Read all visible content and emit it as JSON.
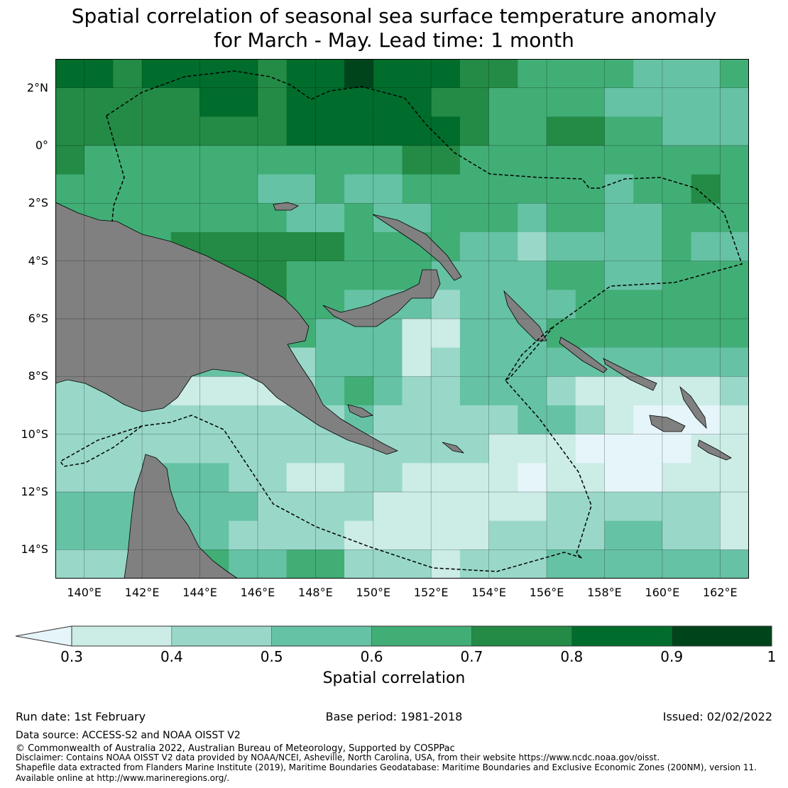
{
  "title_line1": "Spatial correlation of seasonal sea surface temperature anomaly",
  "title_line2": "for March - May. Lead time: 1 month",
  "lat_labels": [
    "2°N",
    "0°",
    "2°S",
    "4°S",
    "6°S",
    "8°S",
    "10°S",
    "12°S",
    "14°S"
  ],
  "lon_labels": [
    "140°E",
    "142°E",
    "144°E",
    "146°E",
    "148°E",
    "150°E",
    "152°E",
    "154°E",
    "156°E",
    "158°E",
    "160°E",
    "162°E"
  ],
  "colorbar": {
    "label": "Spatial correlation",
    "ticks": [
      "0.3",
      "0.4",
      "0.5",
      "0.6",
      "0.7",
      "0.8",
      "0.9",
      "1"
    ],
    "under_color": "#e5f5f9",
    "colors": [
      "#ccece6",
      "#99d8c9",
      "#66c2a4",
      "#41ae76",
      "#238b45",
      "#006d2c",
      "#00441b"
    ]
  },
  "land_color": "#808080",
  "chart_data": {
    "type": "heatmap",
    "lon_range": [
      139,
      163
    ],
    "lat_range": [
      -15,
      3
    ],
    "cell_deg": 1,
    "class_note": "class 0 = <0.3, 1 = 0.3-0.4, ... 7 = 0.9-1.0; rows from 3N southward, columns from 139E eastward",
    "classes": [
      [
        6,
        6,
        5,
        6,
        6,
        6,
        6,
        5,
        6,
        6,
        7,
        6,
        6,
        6,
        5,
        5,
        4,
        4,
        4,
        4,
        3,
        3,
        3,
        4
      ],
      [
        5,
        5,
        5,
        5,
        5,
        6,
        6,
        5,
        6,
        6,
        6,
        6,
        6,
        5,
        5,
        4,
        4,
        4,
        4,
        3,
        3,
        3,
        3,
        3
      ],
      [
        5,
        5,
        5,
        5,
        5,
        5,
        5,
        5,
        6,
        6,
        6,
        6,
        6,
        6,
        5,
        4,
        4,
        5,
        5,
        4,
        4,
        3,
        3,
        3
      ],
      [
        5,
        4,
        4,
        4,
        4,
        4,
        4,
        4,
        4,
        4,
        4,
        4,
        5,
        5,
        4,
        4,
        4,
        4,
        4,
        4,
        4,
        4,
        4,
        4
      ],
      [
        4,
        4,
        4,
        4,
        4,
        4,
        4,
        3,
        3,
        4,
        3,
        3,
        4,
        4,
        4,
        4,
        4,
        4,
        4,
        3,
        4,
        4,
        5,
        4
      ],
      [
        4,
        4,
        4,
        4,
        4,
        4,
        4,
        4,
        3,
        3,
        4,
        3,
        3,
        4,
        4,
        4,
        3,
        4,
        4,
        3,
        3,
        4,
        4,
        4
      ],
      [
        4,
        4,
        4,
        4,
        5,
        5,
        5,
        5,
        5,
        5,
        4,
        4,
        4,
        4,
        3,
        3,
        2,
        3,
        3,
        3,
        3,
        4,
        3,
        3
      ],
      [
        4,
        4,
        4,
        4,
        5,
        5,
        5,
        5,
        4,
        4,
        4,
        4,
        4,
        3,
        3,
        3,
        3,
        4,
        4,
        3,
        3,
        4,
        4,
        4
      ],
      [
        4,
        4,
        4,
        4,
        4,
        4,
        5,
        5,
        4,
        4,
        3,
        3,
        3,
        2,
        3,
        3,
        3,
        3,
        4,
        4,
        4,
        4,
        4,
        4
      ],
      [
        3,
        3,
        3,
        3,
        3,
        3,
        3,
        3,
        4,
        3,
        3,
        3,
        1,
        1,
        3,
        3,
        3,
        4,
        4,
        4,
        4,
        4,
        4,
        4
      ],
      [
        3,
        3,
        3,
        3,
        3,
        3,
        3,
        3,
        2,
        3,
        3,
        3,
        1,
        2,
        3,
        3,
        3,
        3,
        3,
        3,
        3,
        3,
        3,
        3
      ],
      [
        2,
        2,
        2,
        2,
        1,
        1,
        1,
        1,
        2,
        3,
        4,
        3,
        2,
        2,
        3,
        3,
        3,
        2,
        1,
        1,
        1,
        1,
        1,
        2
      ],
      [
        2,
        2,
        2,
        2,
        2,
        2,
        2,
        2,
        2,
        2,
        3,
        2,
        2,
        2,
        2,
        2,
        3,
        3,
        2,
        1,
        0,
        0,
        0,
        1
      ],
      [
        2,
        2,
        2,
        2,
        2,
        2,
        2,
        2,
        2,
        2,
        2,
        2,
        2,
        2,
        2,
        1,
        1,
        1,
        0,
        0,
        0,
        0,
        1,
        1
      ],
      [
        2,
        2,
        2,
        3,
        3,
        3,
        2,
        2,
        1,
        1,
        2,
        2,
        1,
        1,
        1,
        1,
        0,
        1,
        1,
        0,
        0,
        1,
        1,
        1
      ],
      [
        3,
        3,
        3,
        3,
        3,
        3,
        3,
        2,
        2,
        2,
        2,
        1,
        1,
        1,
        1,
        1,
        1,
        2,
        2,
        2,
        2,
        2,
        2,
        1
      ],
      [
        3,
        3,
        3,
        3,
        3,
        3,
        2,
        2,
        2,
        2,
        1,
        1,
        1,
        1,
        1,
        2,
        2,
        2,
        2,
        3,
        3,
        2,
        2,
        1
      ],
      [
        2,
        2,
        2,
        3,
        3,
        4,
        3,
        3,
        4,
        4,
        2,
        2,
        2,
        1,
        2,
        2,
        2,
        3,
        3,
        3,
        3,
        3,
        3,
        3
      ]
    ]
  },
  "footer": {
    "run_date": "Run date: 1st February",
    "base_period": "Base period: 1981-2018",
    "issued": "Issued: 02/02/2022",
    "data_source": "Data source: ACCESS-S2 and NOAA OISST V2",
    "copyright": "© Commonwealth of Australia 2022, Australian Bureau of Meteorology, Supported by COSPPac",
    "disclaimer": "Disclaimer: Contains NOAA OISST V2 data provided by NOAA/NCEI, Asheville, North Carolina, USA, from their website https://www.ncdc.noaa.gov/oisst.",
    "shapefile": "Shapefile data extracted from Flanders Marine Institute (2019), Maritime Boundaries Geodatabase: Maritime Boundaries and Exclusive Economic Zones (200NM), version 11.",
    "available": "Available online at http://www.marineregions.org/."
  }
}
